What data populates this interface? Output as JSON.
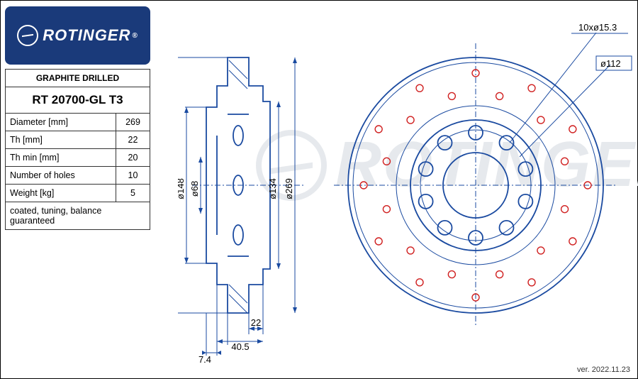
{
  "logo": {
    "brand": "ROTINGER",
    "reg": "®"
  },
  "spec": {
    "title": "GRAPHITE DRILLED",
    "part": "RT 20700-GL T3",
    "rows": [
      {
        "label": "Diameter [mm]",
        "value": "269"
      },
      {
        "label": "Th [mm]",
        "value": "22"
      },
      {
        "label": "Th min [mm]",
        "value": "20"
      },
      {
        "label": "Number of holes",
        "value": "10"
      },
      {
        "label": "Weight [kg]",
        "value": "5"
      }
    ],
    "footer": "coated, tuning, balance guaranteed"
  },
  "watermark": "ROTINGER",
  "version": "ver. 2022.11.23",
  "sideview": {
    "dims_vertical": [
      "ø148",
      "ø68",
      "ø134",
      "ø269"
    ],
    "dims_bottom": [
      "7.4",
      "40.5",
      "22"
    ],
    "stroke_color": "#1a4aa0"
  },
  "frontview": {
    "outer_d": 269,
    "callouts": {
      "holes": "10xø15.3",
      "pcd": "ø112"
    },
    "red_hole_d": 5,
    "bolt_hole_count": 10,
    "red_ring_count": 24,
    "stroke_color": "#1a4aa0",
    "red_color": "#d02020"
  }
}
